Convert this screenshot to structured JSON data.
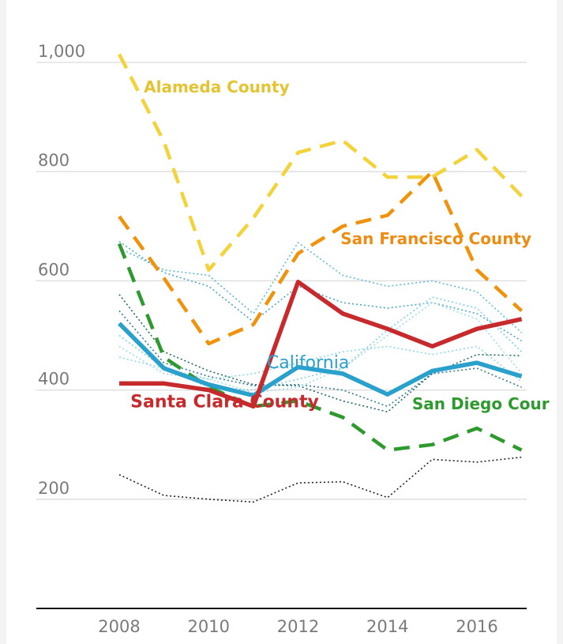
{
  "chart_data": {
    "type": "line",
    "title": "",
    "xlabel": "",
    "ylabel": "",
    "xlim": [
      2006.5,
      2017.6
    ],
    "ylim": [
      0,
      1000
    ],
    "x_ticks": [
      2008,
      2010,
      2012,
      2014,
      2016
    ],
    "x_tick_labels": [
      "2008",
      "2010",
      "2012",
      "2014",
      "2016"
    ],
    "y_ticks": [
      200,
      400,
      600,
      800,
      1000
    ],
    "y_tick_labels": [
      "200",
      "400",
      "600",
      "800",
      "1,000"
    ],
    "grid": true,
    "x": [
      2008,
      2009,
      2010,
      2011,
      2012,
      2013,
      2014,
      2015,
      2016,
      2017
    ],
    "series": [
      {
        "name": "Alameda County",
        "color": "#f2d33b",
        "style": "dashed",
        "highlight": true,
        "values": [
          1015,
          855,
          620,
          715,
          835,
          857,
          790,
          790,
          840,
          755
        ]
      },
      {
        "name": "San Francisco County",
        "color": "#f0920c",
        "style": "dashed",
        "highlight": true,
        "values": [
          718,
          605,
          485,
          520,
          650,
          700,
          720,
          800,
          620,
          545
        ]
      },
      {
        "name": "San Diego County",
        "color": "#2e9a2e",
        "style": "dashed",
        "highlight": true,
        "values": [
          668,
          460,
          405,
          370,
          380,
          350,
          290,
          300,
          330,
          290
        ]
      },
      {
        "name": "California",
        "color": "#2aa0cd",
        "style": "solid",
        "highlight": true,
        "values": [
          522,
          440,
          410,
          390,
          442,
          430,
          392,
          435,
          450,
          425
        ]
      },
      {
        "name": "Santa Clara County",
        "color": "#c72a2c",
        "style": "solid",
        "highlight": true,
        "values": [
          412,
          412,
          400,
          370,
          598,
          540,
          512,
          480,
          512,
          530
        ]
      },
      {
        "name": "",
        "color": "#5fb8d8",
        "style": "dotted",
        "highlight": false,
        "values": [
          660,
          620,
          610,
          540,
          670,
          610,
          590,
          600,
          580,
          505
        ]
      },
      {
        "name": "",
        "color": "#4aa6c8",
        "style": "dotted",
        "highlight": false,
        "values": [
          672,
          615,
          590,
          525,
          590,
          560,
          550,
          560,
          540,
          490
        ]
      },
      {
        "name": "",
        "color": "#1f6a66",
        "style": "dotted",
        "highlight": false,
        "values": [
          575,
          470,
          435,
          410,
          408,
          380,
          360,
          430,
          465,
          463
        ]
      },
      {
        "name": "",
        "color": "#2e7c98",
        "style": "dotted",
        "highlight": false,
        "values": [
          545,
          450,
          425,
          408,
          410,
          400,
          370,
          430,
          440,
          405
        ]
      },
      {
        "name": "",
        "color": "#9fdcec",
        "style": "dotted",
        "highlight": false,
        "values": [
          480,
          430,
          420,
          395,
          405,
          440,
          500,
          560,
          530,
          430
        ]
      },
      {
        "name": "",
        "color": "#7fd0e4",
        "style": "dotted",
        "highlight": false,
        "values": [
          500,
          440,
          405,
          400,
          420,
          440,
          510,
          570,
          550,
          470
        ]
      },
      {
        "name": "",
        "color": "#8ed8df",
        "style": "dotted",
        "highlight": false,
        "values": [
          460,
          440,
          420,
          430,
          450,
          470,
          480,
          465,
          480,
          415
        ]
      },
      {
        "name": "",
        "color": "#222222",
        "style": "dotted",
        "highlight": false,
        "values": [
          245,
          207,
          200,
          195,
          230,
          232,
          203,
          273,
          268,
          277
        ]
      }
    ],
    "annotations": [
      {
        "series": "Alameda County",
        "text": "Alameda County",
        "color": "#e4c432",
        "at": [
          2008.55,
          945
        ]
      },
      {
        "series": "San Francisco County",
        "text": "San Francisco County",
        "color": "#ec8c12",
        "at": [
          2012.95,
          667
        ]
      },
      {
        "series": "California",
        "text": "California",
        "color": "#2aa0cd",
        "at": [
          2011.3,
          440
        ]
      },
      {
        "series": "Santa Clara County",
        "text": "Santa Clara County",
        "color": "#c72a2c",
        "at": [
          2008.25,
          368
        ]
      },
      {
        "series": "San Diego County",
        "text": "San Diego Cour",
        "color": "#2e9a2e",
        "at": [
          2014.55,
          365
        ]
      }
    ]
  }
}
